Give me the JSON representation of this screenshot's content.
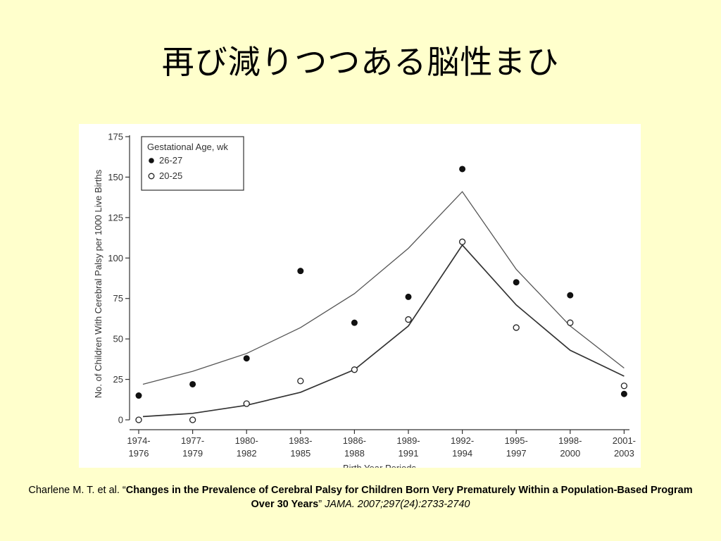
{
  "slide": {
    "title": "再び減りつつある脳性まひ"
  },
  "citation": {
    "authors": "Charlene M. T. et al. “",
    "title": "Changes in the Prevalence of Cerebral Palsy for Children Born Very Prematurely Within a Population-Based Program Over 30 Years",
    "close_quote": "” ",
    "journal": "JAMA. 2007;297(24):2733-2740"
  },
  "chart_data": {
    "type": "scatter",
    "xlabel": "Birth Year Periods",
    "ylabel": "No. of Children With Cerebral Palsy per 1000 Live Births",
    "categories": [
      [
        "1974-",
        "1976"
      ],
      [
        "1977-",
        "1979"
      ],
      [
        "1980-",
        "1982"
      ],
      [
        "1983-",
        "1985"
      ],
      [
        "1986-",
        "1988"
      ],
      [
        "1989-",
        "1991"
      ],
      [
        "1992-",
        "1994"
      ],
      [
        "1995-",
        "1997"
      ],
      [
        "1998-",
        "2000"
      ],
      [
        "2001-",
        "2003"
      ]
    ],
    "ylim": [
      0,
      175
    ],
    "yticks": [
      0,
      25,
      50,
      75,
      100,
      125,
      150,
      175
    ],
    "legend": {
      "title": "Gestational Age, wk",
      "placement": "top-left"
    },
    "series": [
      {
        "name": "26-27",
        "marker": "filled",
        "values": [
          15,
          22,
          38,
          92,
          60,
          76,
          155,
          85,
          77,
          16
        ],
        "fit": [
          22,
          30,
          41,
          57,
          78,
          106,
          141,
          93,
          58,
          32
        ]
      },
      {
        "name": "20-25",
        "marker": "open",
        "values": [
          0,
          0,
          10,
          24,
          31,
          62,
          110,
          57,
          60,
          21
        ],
        "fit": [
          2,
          4,
          9,
          17,
          31,
          58,
          108,
          71,
          43,
          27
        ]
      }
    ]
  }
}
